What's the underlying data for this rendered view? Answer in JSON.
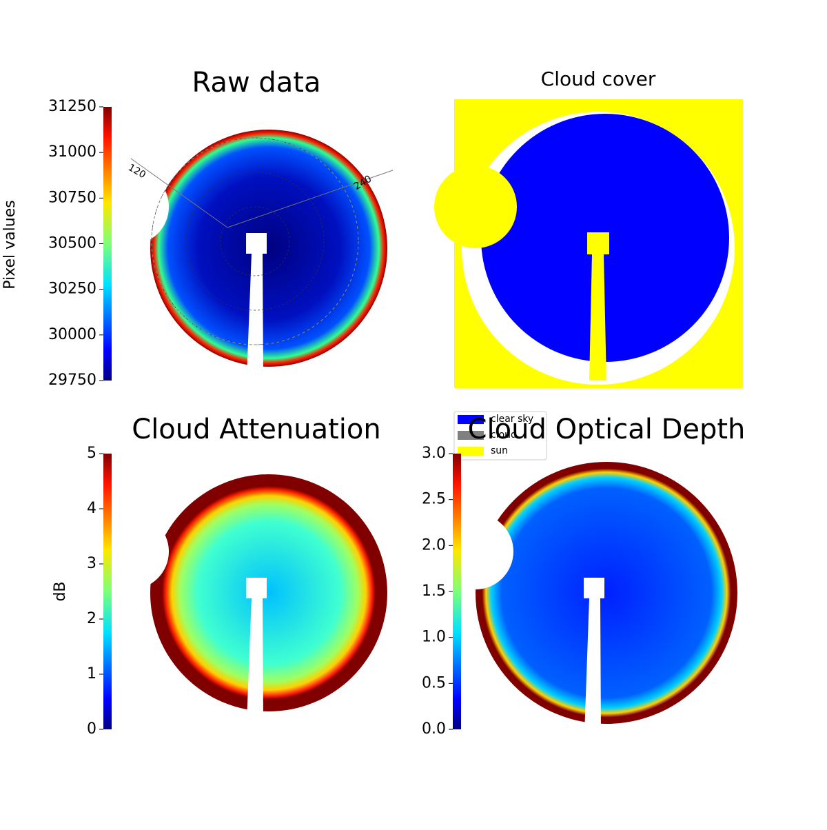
{
  "chart_data": [
    {
      "type": "image",
      "title": "Raw data",
      "annotations": [
        "120",
        "240"
      ],
      "colorbar": {
        "label": "Pixel values",
        "colormap": "jet",
        "lim": [
          29750,
          31250
        ],
        "ticks": [
          29750,
          30000,
          30250,
          30500,
          30750,
          31000,
          31250
        ]
      }
    },
    {
      "type": "categorical-image",
      "title": "Cloud cover",
      "legend": [
        {
          "name": "clear sky",
          "color": "#0000ff"
        },
        {
          "name": "cloud",
          "color": "#808080"
        },
        {
          "name": "sun",
          "color": "#ffff00"
        }
      ]
    },
    {
      "type": "image",
      "title": "Cloud Attenuation",
      "colorbar": {
        "label": "dB",
        "colormap": "jet",
        "lim": [
          0,
          5
        ],
        "ticks": [
          0,
          1,
          2,
          3,
          4,
          5
        ]
      }
    },
    {
      "type": "image",
      "title": "Cloud Optical Depth",
      "colorbar": {
        "colormap": "jet",
        "lim": [
          0,
          3
        ],
        "ticks": [
          {
            "value": 0,
            "label": "0.0"
          },
          0.5,
          {
            "value": 1,
            "label": "1.0"
          },
          1.5,
          {
            "value": 2,
            "label": "2.0"
          },
          2.5,
          {
            "value": 3,
            "label": "3.0"
          }
        ]
      }
    }
  ]
}
